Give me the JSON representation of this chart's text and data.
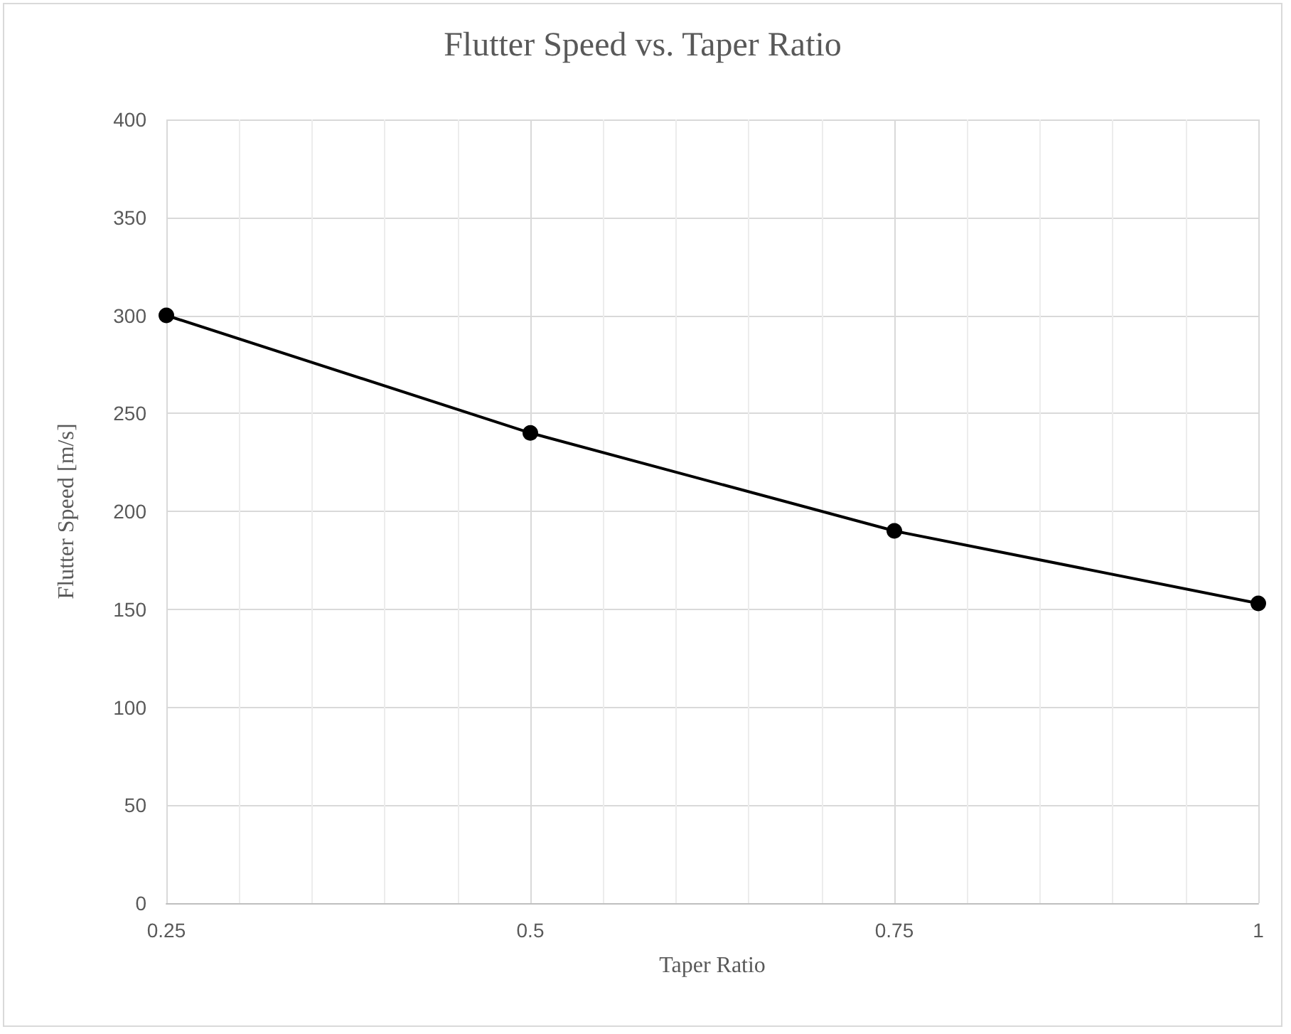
{
  "chart_data": {
    "type": "line",
    "title": "Flutter Speed vs. Taper Ratio",
    "xlabel": "Taper Ratio",
    "ylabel": "Flutter Speed [m/s]",
    "x": [
      0.25,
      0.5,
      0.75,
      1
    ],
    "series": [
      {
        "color": "#000000",
        "values": [
          300,
          240,
          190,
          153
        ]
      }
    ],
    "xlim": [
      0.25,
      1
    ],
    "xticks": [
      0.25,
      0.5,
      0.75,
      1
    ],
    "ylim": [
      0,
      400
    ],
    "yticks": [
      0,
      50,
      100,
      150,
      200,
      250,
      300,
      350,
      400
    ],
    "grid": true,
    "marker": "circle",
    "line_style": "solid"
  }
}
